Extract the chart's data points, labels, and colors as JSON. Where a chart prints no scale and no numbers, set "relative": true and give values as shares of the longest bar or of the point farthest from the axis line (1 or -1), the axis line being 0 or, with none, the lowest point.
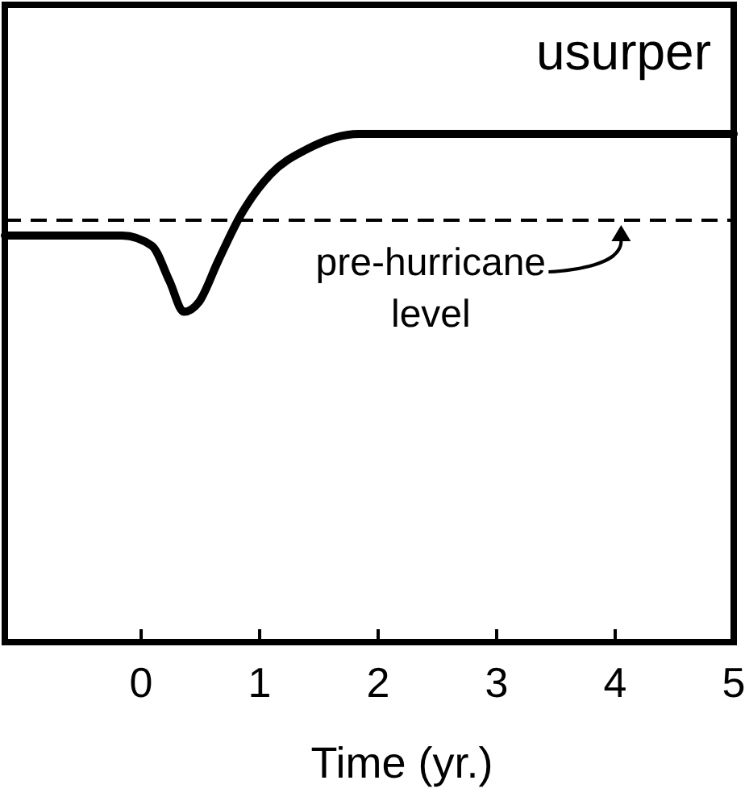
{
  "chart_data": {
    "type": "line",
    "title": "usurper",
    "xlabel": "Time (yr.)",
    "relative": true,
    "xlim": [
      -1.15,
      5
    ],
    "xticks": [
      0,
      1,
      2,
      3,
      4,
      5
    ],
    "tick_labels": "x",
    "grid": false,
    "marker": "none",
    "line_style": "solid",
    "series": [
      {
        "color": "#000000",
        "x": [
          -1.15,
          -0.66,
          -0.16,
          0.09,
          0.24,
          0.36,
          0.49,
          0.65,
          0.84,
          1.09,
          1.4,
          1.84,
          2.59,
          5
        ],
        "values": [
          0.8,
          0.8,
          0.8,
          0.78,
          0.71,
          0.65,
          0.67,
          0.75,
          0.84,
          0.92,
          0.97,
          1,
          1,
          1
        ]
      }
    ],
    "ref_lines": [
      {
        "axis": "y",
        "value": 0.83,
        "line_style": "dashed",
        "color": "#000000"
      }
    ],
    "annotations": [
      {
        "text": "pre-hurricane level",
        "x": 4.05,
        "y": 0.83
      }
    ]
  }
}
